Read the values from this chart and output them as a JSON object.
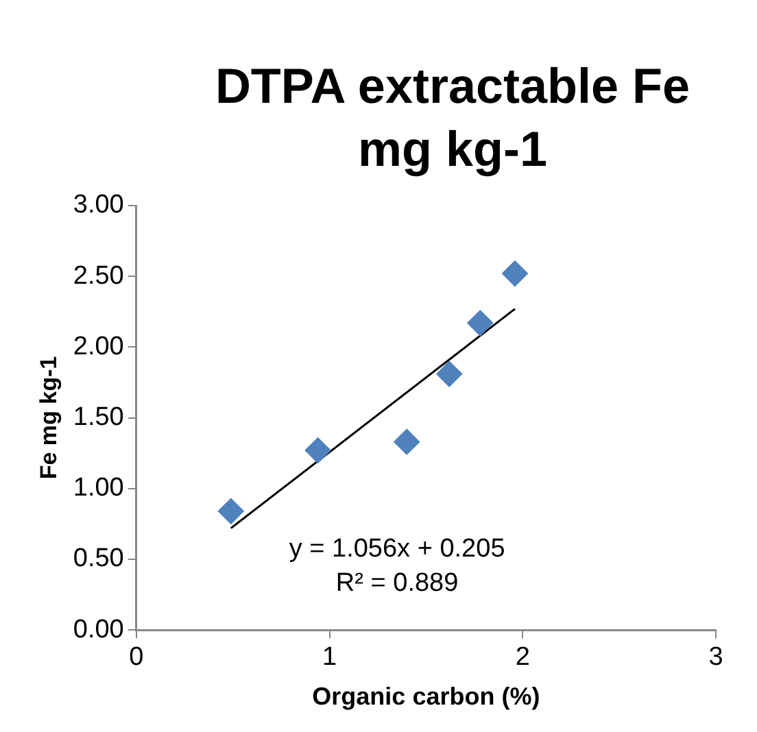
{
  "chart_data": {
    "type": "scatter",
    "title": "DTPA extractable Fe mg kg-1",
    "xlabel": "Organic carbon (%)",
    "ylabel": "Fe mg kg-1",
    "x": [
      0.49,
      0.94,
      1.4,
      1.62,
      1.78,
      1.96
    ],
    "series": [
      {
        "color": "#4f81bd",
        "values": [
          0.84,
          1.27,
          1.33,
          1.81,
          2.17,
          2.52
        ],
        "marker": "diamond"
      },
      {
        "type": "line",
        "color": "#000000",
        "x": [
          0.49,
          1.96
        ],
        "values": [
          0.72,
          2.27
        ],
        "marker": "none"
      }
    ],
    "xlim": [
      0,
      3
    ],
    "xticks": [
      0,
      1,
      2,
      3
    ],
    "ylim": [
      0,
      3
    ],
    "yticks": [
      {
        "value": 0,
        "label": "0.00"
      },
      {
        "value": 0.5,
        "label": "0.50"
      },
      {
        "value": 1,
        "label": "1.00"
      },
      {
        "value": 1.5,
        "label": "1.50"
      },
      {
        "value": 2,
        "label": "2.00"
      },
      {
        "value": 2.5,
        "label": "2.50"
      },
      {
        "value": 3,
        "label": "3.00"
      }
    ],
    "annotations": [
      "y = 1.056x + 0.205",
      "R² = 0.889"
    ],
    "grid": false,
    "legend": false
  }
}
